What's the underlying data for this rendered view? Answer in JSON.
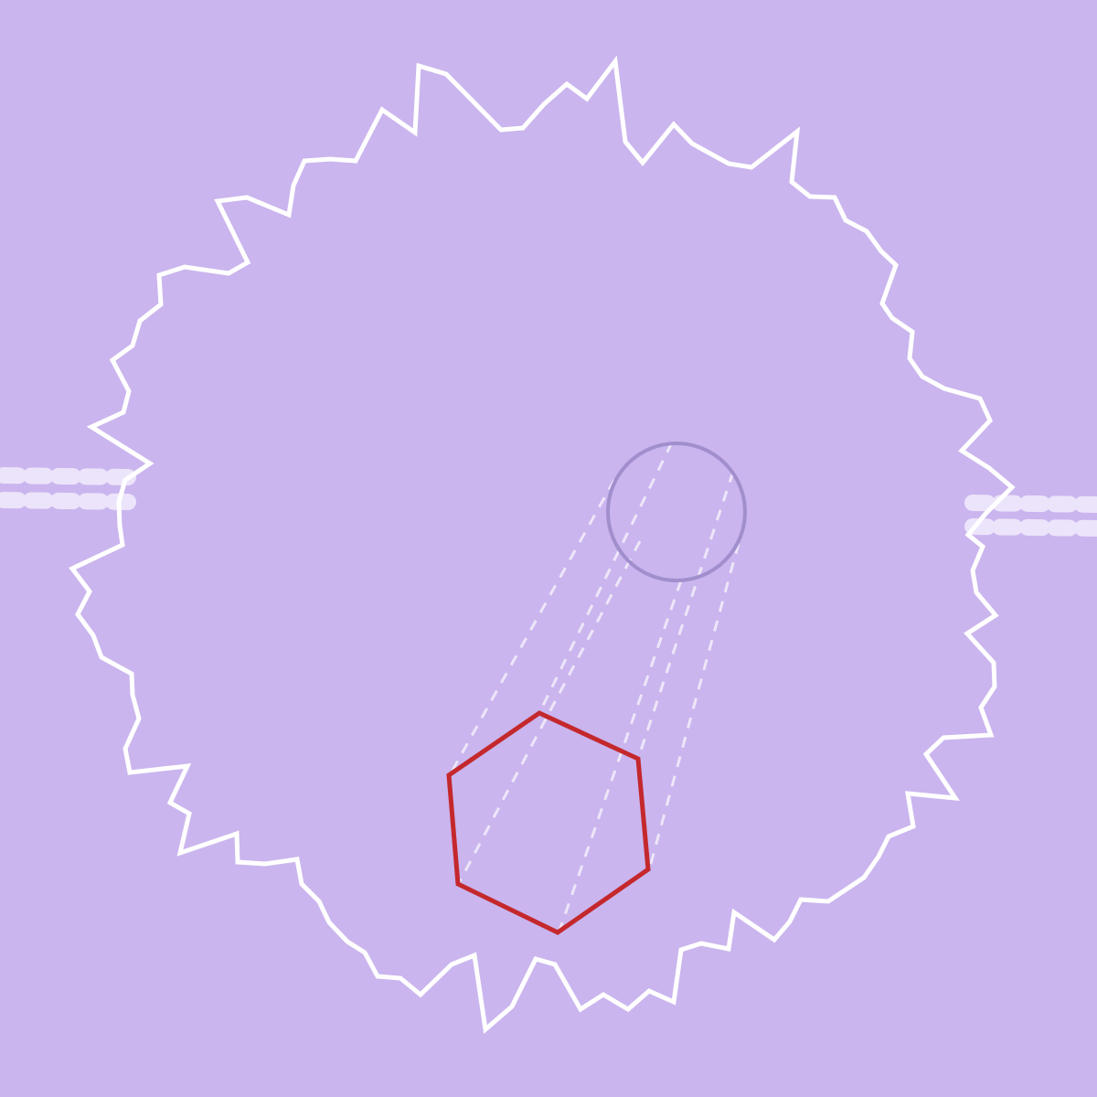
{
  "colors": {
    "background": "#cab5ee",
    "boundary_stroke": "#ffffff",
    "gate_fill": "#ece4fa",
    "target_ring_stroke": "#a18fcd",
    "player_stroke": "#c4282c",
    "trail_stroke": "#f1ecfb"
  },
  "objects": {
    "boundary": "jagged-circular-boundary",
    "gates": [
      "left-gate",
      "right-gate"
    ],
    "target": "target-ring",
    "player": "hexagon-player",
    "trail": "motion-trail"
  }
}
